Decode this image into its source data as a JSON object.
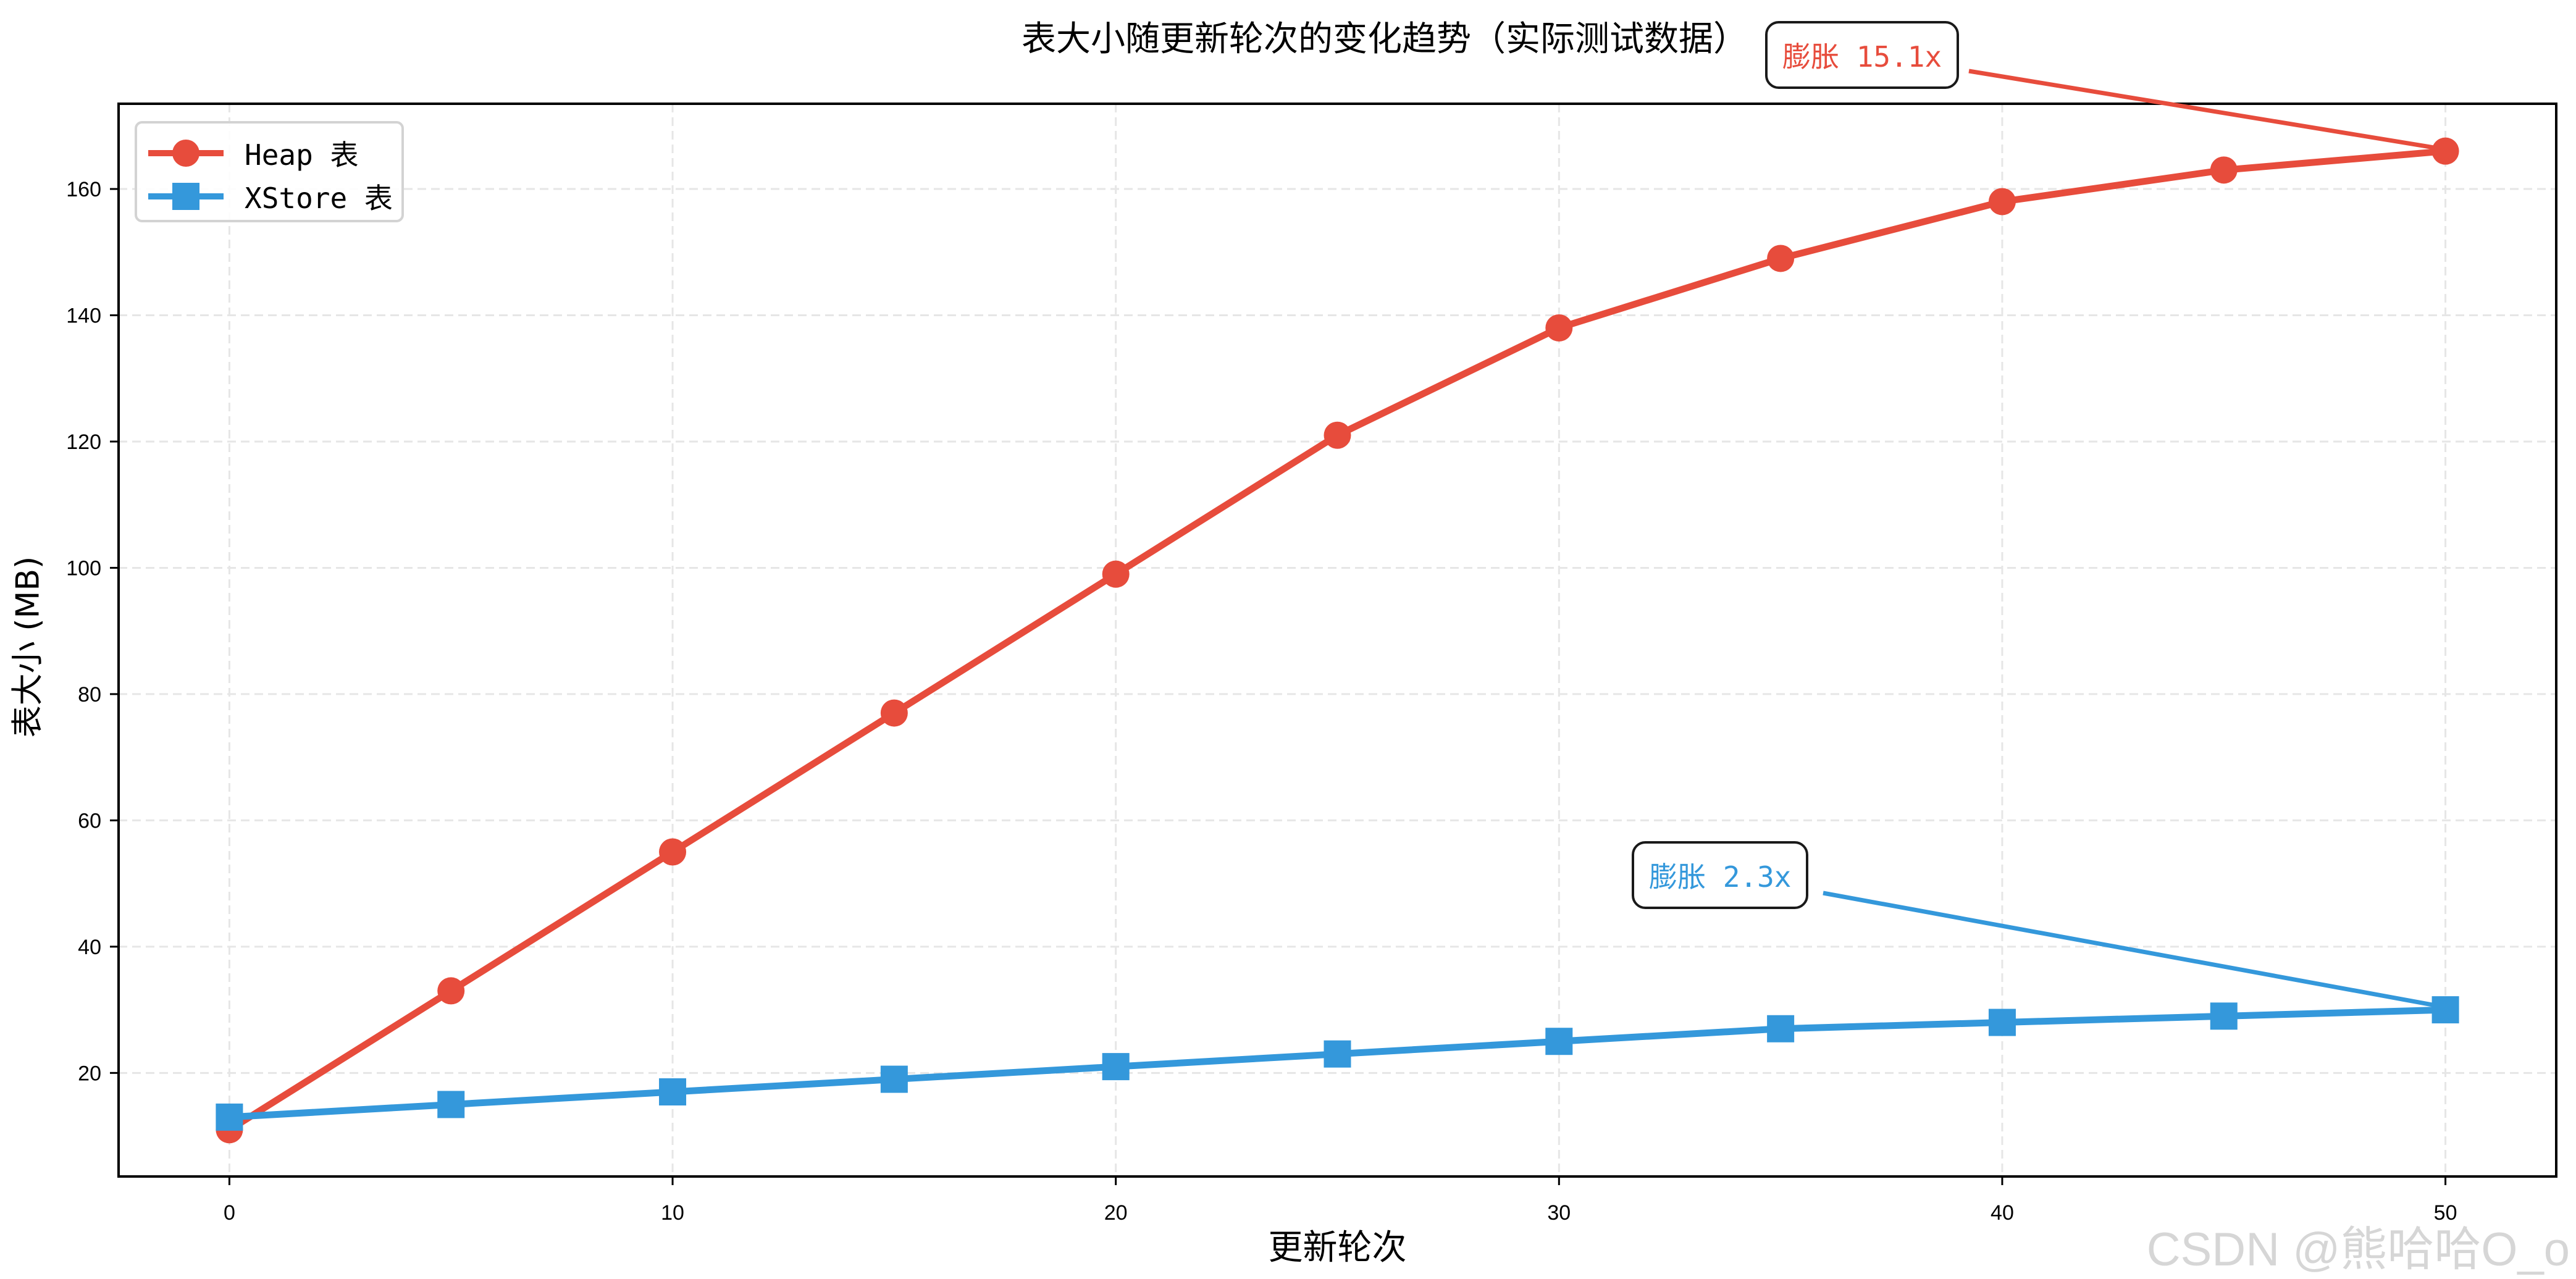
{
  "chart_data": {
    "type": "line",
    "title": "表大小随更新轮次的变化趋势（实际测试数据）",
    "xlabel": "更新轮次",
    "ylabel": "表大小 (MB)",
    "x": [
      0,
      5,
      10,
      15,
      20,
      25,
      30,
      35,
      40,
      45,
      50
    ],
    "series": [
      {
        "name": "Heap 表",
        "color": "#e74c3c",
        "marker": "circle",
        "values": [
          11,
          33,
          55,
          77,
          99,
          121,
          138,
          149,
          158,
          163,
          166
        ]
      },
      {
        "name": "XStore 表",
        "color": "#3498db",
        "marker": "square",
        "values": [
          13,
          15,
          17,
          19,
          21,
          23,
          25,
          27,
          28,
          29,
          30
        ]
      }
    ],
    "xlim": [
      -2.5,
      52.5
    ],
    "ylim": [
      3.6,
      173.5
    ],
    "xticks": [
      0,
      10,
      20,
      30,
      40,
      50
    ],
    "yticks": [
      20,
      40,
      60,
      80,
      100,
      120,
      140,
      160
    ],
    "grid": true,
    "legend_position": "upper left",
    "annotations": [
      {
        "text": "膨胀 15.1x",
        "color": "#e74c3c",
        "target_x": 50,
        "target_y": 166
      },
      {
        "text": "膨胀 2.3x",
        "color": "#3498db",
        "target_x": 50,
        "target_y": 30
      }
    ]
  },
  "watermark": "CSDN @熊哈哈O_o"
}
